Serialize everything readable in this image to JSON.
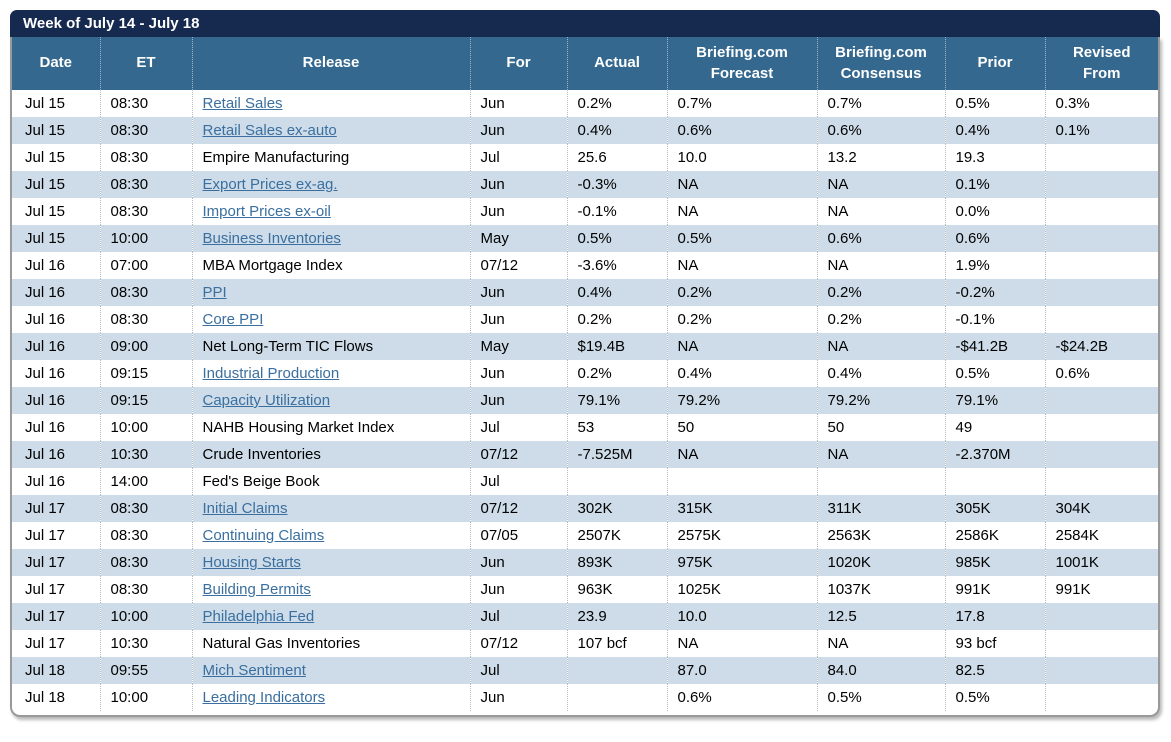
{
  "title_bar": {
    "label": "Week of July 14 - July 18"
  },
  "colors": {
    "title_bar_bg": "#16294E",
    "header_bg": "#35688E",
    "row_alt_bg": "#CDDCE8",
    "link_color": "#3A6F9F",
    "border_color": "#999999"
  },
  "table": {
    "columns": [
      "Date",
      "ET",
      "Release",
      "For",
      "Actual",
      "Briefing.com\nForecast",
      "Briefing.com\nConsensus",
      "Prior",
      "Revised\nFrom"
    ],
    "rows": [
      {
        "date": "Jul 15",
        "et": "08:30",
        "release": "Retail Sales",
        "link": true,
        "for": "Jun",
        "actual": "0.2%",
        "forecast": "0.7%",
        "consensus": "0.7%",
        "prior": "0.5%",
        "revised": "0.3%"
      },
      {
        "date": "Jul 15",
        "et": "08:30",
        "release": "Retail Sales ex-auto",
        "link": true,
        "for": "Jun",
        "actual": "0.4%",
        "forecast": "0.6%",
        "consensus": "0.6%",
        "prior": "0.4%",
        "revised": "0.1%"
      },
      {
        "date": "Jul 15",
        "et": "08:30",
        "release": "Empire Manufacturing",
        "link": false,
        "for": "Jul",
        "actual": "25.6",
        "forecast": "10.0",
        "consensus": "13.2",
        "prior": "19.3",
        "revised": ""
      },
      {
        "date": "Jul 15",
        "et": "08:30",
        "release": "Export Prices ex-ag.",
        "link": true,
        "for": "Jun",
        "actual": "-0.3%",
        "forecast": "NA",
        "consensus": "NA",
        "prior": "0.1%",
        "revised": ""
      },
      {
        "date": "Jul 15",
        "et": "08:30",
        "release": "Import Prices ex-oil",
        "link": true,
        "for": "Jun",
        "actual": "-0.1%",
        "forecast": "NA",
        "consensus": "NA",
        "prior": "0.0%",
        "revised": ""
      },
      {
        "date": "Jul 15",
        "et": "10:00",
        "release": "Business Inventories",
        "link": true,
        "for": "May",
        "actual": "0.5%",
        "forecast": "0.5%",
        "consensus": "0.6%",
        "prior": "0.6%",
        "revised": ""
      },
      {
        "date": "Jul 16",
        "et": "07:00",
        "release": "MBA Mortgage Index",
        "link": false,
        "for": "07/12",
        "actual": "-3.6%",
        "forecast": "NA",
        "consensus": "NA",
        "prior": "1.9%",
        "revised": ""
      },
      {
        "date": "Jul 16",
        "et": "08:30",
        "release": "PPI",
        "link": true,
        "for": "Jun",
        "actual": "0.4%",
        "forecast": "0.2%",
        "consensus": "0.2%",
        "prior": "-0.2%",
        "revised": ""
      },
      {
        "date": "Jul 16",
        "et": "08:30",
        "release": "Core PPI",
        "link": true,
        "for": "Jun",
        "actual": "0.2%",
        "forecast": "0.2%",
        "consensus": "0.2%",
        "prior": "-0.1%",
        "revised": ""
      },
      {
        "date": "Jul 16",
        "et": "09:00",
        "release": "Net Long-Term TIC Flows",
        "link": false,
        "for": "May",
        "actual": "$19.4B",
        "forecast": "NA",
        "consensus": "NA",
        "prior": "-$41.2B",
        "revised": "-$24.2B"
      },
      {
        "date": "Jul 16",
        "et": "09:15",
        "release": "Industrial Production",
        "link": true,
        "for": "Jun",
        "actual": "0.2%",
        "forecast": "0.4%",
        "consensus": "0.4%",
        "prior": "0.5%",
        "revised": "0.6%"
      },
      {
        "date": "Jul 16",
        "et": "09:15",
        "release": "Capacity Utilization",
        "link": true,
        "for": "Jun",
        "actual": "79.1%",
        "forecast": "79.2%",
        "consensus": "79.2%",
        "prior": "79.1%",
        "revised": ""
      },
      {
        "date": "Jul 16",
        "et": "10:00",
        "release": "NAHB Housing Market Index",
        "link": false,
        "for": "Jul",
        "actual": "53",
        "forecast": "50",
        "consensus": "50",
        "prior": "49",
        "revised": ""
      },
      {
        "date": "Jul 16",
        "et": "10:30",
        "release": "Crude Inventories",
        "link": false,
        "for": "07/12",
        "actual": "-7.525M",
        "forecast": "NA",
        "consensus": "NA",
        "prior": "-2.370M",
        "revised": ""
      },
      {
        "date": "Jul 16",
        "et": "14:00",
        "release": "Fed's Beige Book",
        "link": false,
        "for": "Jul",
        "actual": "",
        "forecast": "",
        "consensus": "",
        "prior": "",
        "revised": ""
      },
      {
        "date": "Jul 17",
        "et": "08:30",
        "release": "Initial Claims",
        "link": true,
        "for": "07/12",
        "actual": "302K",
        "forecast": "315K",
        "consensus": "311K",
        "prior": "305K",
        "revised": "304K"
      },
      {
        "date": "Jul 17",
        "et": "08:30",
        "release": "Continuing Claims",
        "link": true,
        "for": "07/05",
        "actual": "2507K",
        "forecast": "2575K",
        "consensus": "2563K",
        "prior": "2586K",
        "revised": "2584K"
      },
      {
        "date": "Jul 17",
        "et": "08:30",
        "release": "Housing Starts",
        "link": true,
        "for": "Jun",
        "actual": "893K",
        "forecast": "975K",
        "consensus": "1020K",
        "prior": "985K",
        "revised": "1001K"
      },
      {
        "date": "Jul 17",
        "et": "08:30",
        "release": "Building Permits",
        "link": true,
        "for": "Jun",
        "actual": "963K",
        "forecast": "1025K",
        "consensus": "1037K",
        "prior": "991K",
        "revised": "991K"
      },
      {
        "date": "Jul 17",
        "et": "10:00",
        "release": "Philadelphia Fed",
        "link": true,
        "for": "Jul",
        "actual": "23.9",
        "forecast": "10.0",
        "consensus": "12.5",
        "prior": "17.8",
        "revised": ""
      },
      {
        "date": "Jul 17",
        "et": "10:30",
        "release": "Natural Gas Inventories",
        "link": false,
        "for": "07/12",
        "actual": "107 bcf",
        "forecast": "NA",
        "consensus": "NA",
        "prior": "93 bcf",
        "revised": ""
      },
      {
        "date": "Jul 18",
        "et": "09:55",
        "release": "Mich Sentiment",
        "link": true,
        "for": "Jul",
        "actual": "",
        "forecast": "87.0",
        "consensus": "84.0",
        "prior": "82.5",
        "revised": ""
      },
      {
        "date": "Jul 18",
        "et": "10:00",
        "release": "Leading Indicators",
        "link": true,
        "for": "Jun",
        "actual": "",
        "forecast": "0.6%",
        "consensus": "0.5%",
        "prior": "0.5%",
        "revised": ""
      }
    ]
  }
}
